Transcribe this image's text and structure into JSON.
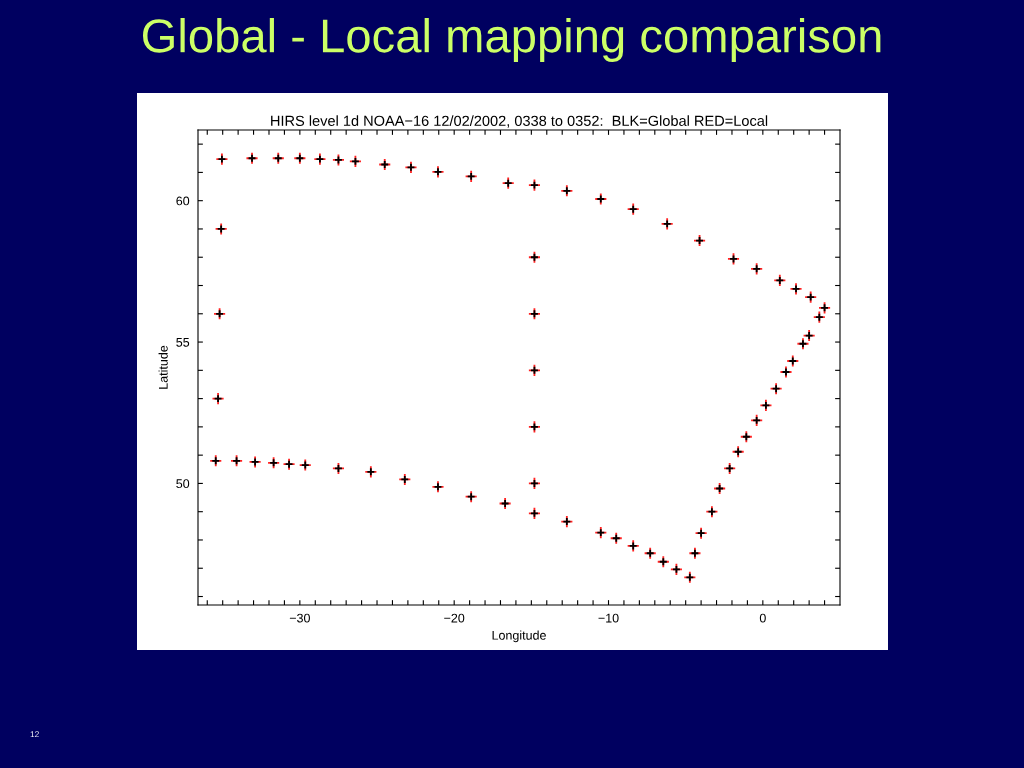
{
  "chart_data": {
    "type": "scatter",
    "title": "Global - Local mapping comparison",
    "subtitle": "HIRS level 1d NOAA−16 12/02/2002, 0338 to 0352:  BLK=Global RED=Local",
    "xlabel": "Longitude",
    "ylabel": "Latitude",
    "annotations": [
      "12"
    ],
    "marker": "cross",
    "legend": false,
    "grid": false,
    "xlim": [
      -36.6,
      5.0
    ],
    "ylim": [
      45.7,
      62.5
    ],
    "xticks": [
      {
        "value": -36,
        "label": null
      },
      {
        "value": -35,
        "label": null
      },
      {
        "value": -34,
        "label": null
      },
      {
        "value": -33,
        "label": null
      },
      {
        "value": -32,
        "label": null
      },
      {
        "value": -31,
        "label": null
      },
      {
        "value": -30,
        "label": "−30"
      },
      {
        "value": -29,
        "label": null
      },
      {
        "value": -28,
        "label": null
      },
      {
        "value": -27,
        "label": null
      },
      {
        "value": -26,
        "label": null
      },
      {
        "value": -25,
        "label": null
      },
      {
        "value": -24,
        "label": null
      },
      {
        "value": -23,
        "label": null
      },
      {
        "value": -22,
        "label": null
      },
      {
        "value": -21,
        "label": null
      },
      {
        "value": -20,
        "label": "−20"
      },
      {
        "value": -19,
        "label": null
      },
      {
        "value": -18,
        "label": null
      },
      {
        "value": -17,
        "label": null
      },
      {
        "value": -16,
        "label": null
      },
      {
        "value": -15,
        "label": null
      },
      {
        "value": -14,
        "label": null
      },
      {
        "value": -13,
        "label": null
      },
      {
        "value": -12,
        "label": null
      },
      {
        "value": -11,
        "label": null
      },
      {
        "value": -10,
        "label": "−10"
      },
      {
        "value": -9,
        "label": null
      },
      {
        "value": -8,
        "label": null
      },
      {
        "value": -7,
        "label": null
      },
      {
        "value": -6,
        "label": null
      },
      {
        "value": -5,
        "label": null
      },
      {
        "value": -4,
        "label": null
      },
      {
        "value": -3,
        "label": null
      },
      {
        "value": -2,
        "label": null
      },
      {
        "value": -1,
        "label": null
      },
      0,
      {
        "value": 1,
        "label": null
      },
      {
        "value": 2,
        "label": null
      },
      {
        "value": 3,
        "label": null
      },
      {
        "value": 4,
        "label": null
      }
    ],
    "yticks": [
      {
        "value": 46,
        "label": null
      },
      {
        "value": 47,
        "label": null
      },
      {
        "value": 48,
        "label": null
      },
      {
        "value": 49,
        "label": null
      },
      50,
      {
        "value": 51,
        "label": null
      },
      {
        "value": 52,
        "label": null
      },
      {
        "value": 53,
        "label": null
      },
      {
        "value": 54,
        "label": null
      },
      55,
      {
        "value": 56,
        "label": null
      },
      {
        "value": 57,
        "label": null
      },
      {
        "value": 58,
        "label": null
      },
      {
        "value": 59,
        "label": null
      },
      60,
      {
        "value": 61,
        "label": null
      },
      {
        "value": 62,
        "label": null
      }
    ],
    "x": [
      -35.05,
      -33.1,
      -31.4,
      -30.0,
      -28.7,
      -27.5,
      -26.4,
      -24.5,
      -22.8,
      -21.05,
      -18.9,
      -16.5,
      -14.8,
      -12.7,
      -10.5,
      -8.4,
      -6.2,
      -4.1,
      -1.9,
      -0.4,
      1.1,
      2.15,
      3.1,
      4.0,
      3.66,
      3.0,
      2.6,
      1.94,
      1.5,
      0.86,
      0.2,
      -0.4,
      -1.07,
      -1.6,
      -2.15,
      -2.8,
      -3.3,
      -4.0,
      -4.4,
      -4.73,
      -5.6,
      -6.45,
      -7.3,
      -8.4,
      -9.5,
      -10.5,
      -12.7,
      -14.8,
      -16.7,
      -18.9,
      -21.05,
      -23.2,
      -25.4,
      -27.5,
      -29.65,
      -30.7,
      -31.7,
      -32.9,
      -34.1,
      -35.45,
      -35.3,
      -35.2,
      -35.1,
      -14.8,
      -14.8,
      -14.8,
      -14.8,
      -14.8
    ],
    "series": [
      {
        "color": "#000000",
        "values": [
          61.47,
          61.5,
          61.5,
          61.5,
          61.47,
          61.44,
          61.39,
          61.28,
          61.18,
          61.02,
          60.86,
          60.62,
          60.55,
          60.35,
          60.06,
          59.7,
          59.18,
          58.59,
          57.94,
          57.59,
          57.18,
          56.88,
          56.59,
          56.21,
          55.88,
          55.23,
          54.94,
          54.33,
          53.94,
          53.35,
          52.76,
          52.23,
          51.65,
          51.12,
          50.53,
          49.82,
          49.0,
          48.24,
          47.53,
          46.68,
          46.96,
          47.23,
          47.53,
          47.79,
          48.06,
          48.26,
          48.65,
          48.94,
          49.29,
          49.53,
          49.88,
          50.14,
          50.41,
          50.53,
          50.65,
          50.68,
          50.73,
          50.76,
          50.8,
          50.8,
          53.0,
          56.0,
          59.0,
          58.0,
          56.0,
          54.0,
          52.0,
          50.0
        ]
      },
      {
        "color": "#ff2020",
        "values": [
          61.47,
          61.5,
          61.5,
          61.5,
          61.47,
          61.44,
          61.39,
          61.28,
          61.18,
          61.02,
          60.86,
          60.62,
          60.55,
          60.35,
          60.06,
          59.7,
          59.18,
          58.59,
          57.94,
          57.59,
          57.18,
          56.88,
          56.59,
          56.21,
          55.88,
          55.23,
          54.94,
          54.33,
          53.94,
          53.35,
          52.76,
          52.23,
          51.65,
          51.12,
          50.53,
          49.82,
          49.0,
          48.24,
          47.53,
          46.68,
          46.96,
          47.23,
          47.53,
          47.79,
          48.06,
          48.26,
          48.65,
          48.94,
          49.29,
          49.53,
          49.88,
          50.14,
          50.41,
          50.53,
          50.65,
          50.68,
          50.73,
          50.76,
          50.8,
          50.8,
          53.0,
          56.0,
          59.0,
          58.0,
          56.0,
          54.0,
          52.0,
          50.0
        ]
      }
    ]
  }
}
